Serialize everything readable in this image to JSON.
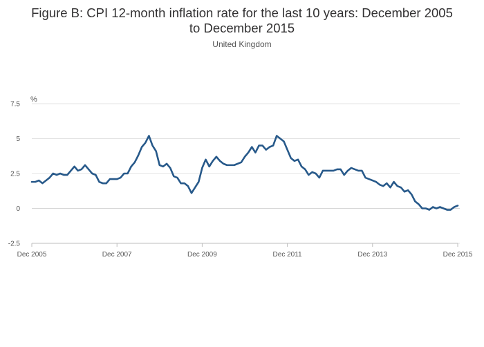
{
  "chart_data": {
    "type": "line",
    "title_line1": "Figure B: CPI 12-month inflation rate for the last 10 years: December 2005",
    "title_line2": "to December 2015",
    "subtitle": "United Kingdom",
    "ylabel": "%",
    "ylim": [
      -2.5,
      7.5
    ],
    "yticks": [
      -2.5,
      0,
      2.5,
      5,
      7.5
    ],
    "ytick_labels": [
      "-2.5",
      "0",
      "2.5",
      "5",
      "7.5"
    ],
    "xticks": [
      "Dec 2005",
      "Dec 2007",
      "Dec 2009",
      "Dec 2011",
      "Dec 2013",
      "Dec 2015"
    ],
    "x_start": "Dec 2005",
    "x_end": "Dec 2015",
    "grid": true,
    "line_color": "#27598a",
    "series": [
      {
        "values": [
          1.9,
          1.9,
          2.0,
          1.8,
          2.0,
          2.2,
          2.5,
          2.4,
          2.5,
          2.4,
          2.4,
          2.7,
          3.0,
          2.7,
          2.8,
          3.1,
          2.8,
          2.5,
          2.4,
          1.9,
          1.8,
          1.8,
          2.1,
          2.1,
          2.1,
          2.2,
          2.5,
          2.5,
          3.0,
          3.3,
          3.8,
          4.4,
          4.7,
          5.2,
          4.5,
          4.1,
          3.1,
          3.0,
          3.2,
          2.9,
          2.3,
          2.2,
          1.8,
          1.8,
          1.6,
          1.1,
          1.5,
          1.9,
          2.9,
          3.5,
          3.0,
          3.4,
          3.7,
          3.4,
          3.2,
          3.1,
          3.1,
          3.1,
          3.2,
          3.3,
          3.7,
          4.0,
          4.4,
          4.0,
          4.5,
          4.5,
          4.2,
          4.4,
          4.5,
          5.2,
          5.0,
          4.8,
          4.2,
          3.6,
          3.4,
          3.5,
          3.0,
          2.8,
          2.4,
          2.6,
          2.5,
          2.2,
          2.7,
          2.7,
          2.7,
          2.7,
          2.8,
          2.8,
          2.4,
          2.7,
          2.9,
          2.8,
          2.7,
          2.7,
          2.2,
          2.1,
          2.0,
          1.9,
          1.7,
          1.6,
          1.8,
          1.5,
          1.9,
          1.6,
          1.5,
          1.2,
          1.3,
          1.0,
          0.5,
          0.3,
          0.0,
          0.0,
          -0.1,
          0.1,
          0.0,
          0.1,
          0.0,
          -0.1,
          -0.1,
          0.1,
          0.2
        ]
      }
    ]
  }
}
